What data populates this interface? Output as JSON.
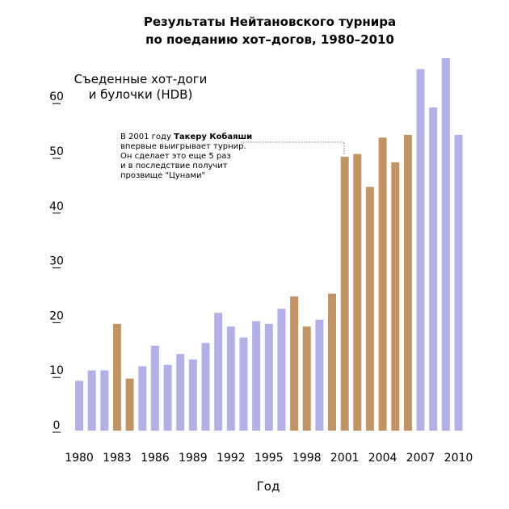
{
  "chart_data": {
    "type": "bar",
    "title_lines": [
      "Результаты Нейтановского турнира",
      "по поеданию хот–догов, 1980–2010"
    ],
    "ylabel_lines": [
      "Съеденные хот-доги",
      "и булочки (HDB)"
    ],
    "xlabel": "Год",
    "ylim": [
      0,
      68
    ],
    "y_ticks": [
      0,
      10,
      20,
      30,
      40,
      50,
      60
    ],
    "x_tick_labels": [
      "1980",
      "1983",
      "1986",
      "1989",
      "1992",
      "1995",
      "1998",
      "2001",
      "2004",
      "2007",
      "2010"
    ],
    "categories": [
      1980,
      1981,
      1982,
      1983,
      1984,
      1985,
      1986,
      1987,
      1988,
      1989,
      1990,
      1991,
      1992,
      1993,
      1994,
      1995,
      1996,
      1997,
      1998,
      1999,
      2000,
      2001,
      2002,
      2003,
      2004,
      2005,
      2006,
      2007,
      2008,
      2009,
      2010
    ],
    "values": [
      9.1,
      11,
      11,
      19.5,
      9.5,
      11.75,
      15.5,
      12,
      14,
      13,
      16,
      21.5,
      19,
      17,
      20,
      19.5,
      22.25,
      24.5,
      19,
      20.25,
      25,
      50,
      50.5,
      44.5,
      53.5,
      49,
      54,
      66,
      59,
      68,
      54
    ],
    "highlight": [
      false,
      false,
      false,
      true,
      true,
      false,
      false,
      false,
      false,
      false,
      false,
      false,
      false,
      false,
      false,
      false,
      false,
      true,
      true,
      false,
      true,
      true,
      true,
      true,
      true,
      true,
      true,
      false,
      false,
      false,
      false
    ],
    "colors": {
      "default": "#b3b0e6",
      "highlight": "#c29463"
    },
    "annotation": {
      "line1_pre": "В 2001 году ",
      "line1_bold": "Такеру Кобаяши",
      "lines": [
        "впервые выигрывает турнир.",
        "Он сделает это еще 5 раз",
        "и в последствие получит",
        "прозвище \"Цунами\""
      ]
    },
    "grid": false
  }
}
